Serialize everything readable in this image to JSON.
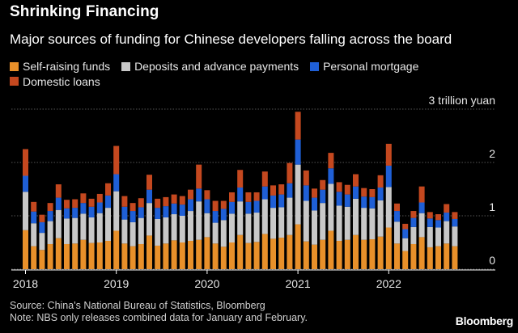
{
  "header": {
    "title": "Shrinking Financing",
    "subtitle": "Major sources of funding for Chinese developers falling across the board"
  },
  "footer": {
    "source": "Source: China's National Bureau of Statistics, Bloomberg",
    "note": "Note: NBS only releases combined data for January and February."
  },
  "brand": "Bloomberg",
  "chart_data": {
    "type": "bar",
    "stacked": true,
    "unit_label": "3 trillion yuan",
    "yticks": [
      {
        "value": 0,
        "label": "0"
      },
      {
        "value": 1,
        "label": "1"
      },
      {
        "value": 2,
        "label": "2"
      },
      {
        "value": 3,
        "label": "3 trillion yuan"
      }
    ],
    "ylim": [
      0,
      3
    ],
    "grid": true,
    "x_labels": [
      {
        "index": 0,
        "label": "2018"
      },
      {
        "index": 11,
        "label": "2019"
      },
      {
        "index": 22,
        "label": "2020"
      },
      {
        "index": 33,
        "label": "2021"
      },
      {
        "index": 44,
        "label": "2022"
      }
    ],
    "categories": [
      "2018-02",
      "2018-03",
      "2018-04",
      "2018-05",
      "2018-06",
      "2018-07",
      "2018-08",
      "2018-09",
      "2018-10",
      "2018-11",
      "2018-12",
      "2019-02",
      "2019-03",
      "2019-04",
      "2019-05",
      "2019-06",
      "2019-07",
      "2019-08",
      "2019-09",
      "2019-10",
      "2019-11",
      "2019-12",
      "2020-02",
      "2020-03",
      "2020-04",
      "2020-05",
      "2020-06",
      "2020-07",
      "2020-08",
      "2020-09",
      "2020-10",
      "2020-11",
      "2020-12",
      "2021-02",
      "2021-03",
      "2021-04",
      "2021-05",
      "2021-06",
      "2021-07",
      "2021-08",
      "2021-09",
      "2021-10",
      "2021-11",
      "2021-12",
      "2022-02",
      "2022-03",
      "2022-04",
      "2022-05",
      "2022-06",
      "2022-07",
      "2022-08",
      "2022-09",
      "2022-10"
    ],
    "series": [
      {
        "name": "Self-raising funds",
        "color": "#e8902a",
        "values": [
          0.73,
          0.43,
          0.36,
          0.47,
          0.58,
          0.47,
          0.48,
          0.55,
          0.49,
          0.5,
          0.53,
          0.72,
          0.48,
          0.43,
          0.47,
          0.63,
          0.44,
          0.48,
          0.54,
          0.5,
          0.53,
          0.55,
          0.6,
          0.48,
          0.42,
          0.5,
          0.64,
          0.49,
          0.51,
          0.66,
          0.57,
          0.59,
          0.64,
          0.84,
          0.52,
          0.46,
          0.55,
          0.72,
          0.53,
          0.55,
          0.64,
          0.55,
          0.56,
          0.61,
          0.78,
          0.48,
          0.34,
          0.47,
          0.6,
          0.41,
          0.43,
          0.48,
          0.43
        ]
      },
      {
        "name": "Deposits and advance payments",
        "color": "#c8c8c8",
        "values": [
          0.72,
          0.43,
          0.32,
          0.43,
          0.53,
          0.48,
          0.48,
          0.49,
          0.48,
          0.55,
          0.62,
          0.74,
          0.45,
          0.45,
          0.49,
          0.61,
          0.5,
          0.49,
          0.49,
          0.5,
          0.56,
          0.72,
          0.45,
          0.39,
          0.5,
          0.54,
          0.63,
          0.55,
          0.55,
          0.65,
          0.58,
          0.57,
          0.7,
          1.12,
          0.76,
          0.64,
          0.69,
          0.88,
          0.66,
          0.62,
          0.68,
          0.6,
          0.58,
          0.68,
          0.76,
          0.41,
          0.24,
          0.32,
          0.45,
          0.38,
          0.35,
          0.42,
          0.37
        ]
      },
      {
        "name": "Personal mortgage",
        "color": "#1f5fd6",
        "values": [
          0.3,
          0.22,
          0.2,
          0.19,
          0.23,
          0.19,
          0.19,
          0.2,
          0.2,
          0.2,
          0.23,
          0.32,
          0.24,
          0.21,
          0.2,
          0.25,
          0.21,
          0.21,
          0.2,
          0.21,
          0.22,
          0.24,
          0.26,
          0.22,
          0.21,
          0.22,
          0.26,
          0.22,
          0.22,
          0.24,
          0.23,
          0.24,
          0.27,
          0.47,
          0.29,
          0.24,
          0.25,
          0.29,
          0.26,
          0.23,
          0.23,
          0.21,
          0.21,
          0.24,
          0.4,
          0.2,
          0.17,
          0.17,
          0.2,
          0.16,
          0.14,
          0.16,
          0.14
        ]
      },
      {
        "name": "Domestic loans",
        "color": "#c4481f",
        "values": [
          0.5,
          0.18,
          0.14,
          0.15,
          0.25,
          0.16,
          0.16,
          0.18,
          0.15,
          0.16,
          0.23,
          0.53,
          0.2,
          0.15,
          0.17,
          0.28,
          0.17,
          0.17,
          0.17,
          0.16,
          0.18,
          0.45,
          0.17,
          0.19,
          0.15,
          0.18,
          0.33,
          0.18,
          0.16,
          0.28,
          0.19,
          0.19,
          0.38,
          0.52,
          0.28,
          0.17,
          0.18,
          0.29,
          0.18,
          0.18,
          0.23,
          0.16,
          0.15,
          0.23,
          0.41,
          0.14,
          0.1,
          0.13,
          0.3,
          0.12,
          0.11,
          0.16,
          0.13
        ]
      }
    ]
  }
}
